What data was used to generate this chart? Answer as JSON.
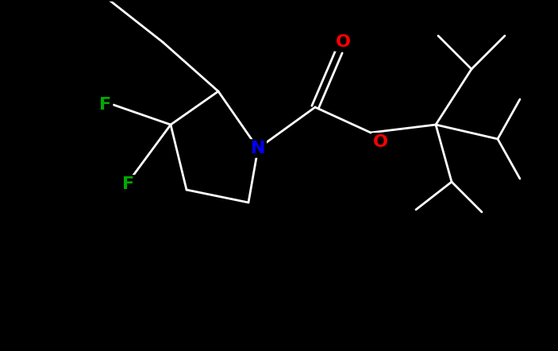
{
  "background_color": "#000000",
  "bond_color": "#ffffff",
  "atom_colors": {
    "N": "#0000ff",
    "O": "#ff0000",
    "F": "#00aa00",
    "C": "#ffffff",
    "H": "#ffffff"
  },
  "font_size_atoms": 16,
  "line_width": 2.0,
  "figsize": [
    7.03,
    4.42
  ],
  "dpi": 100
}
